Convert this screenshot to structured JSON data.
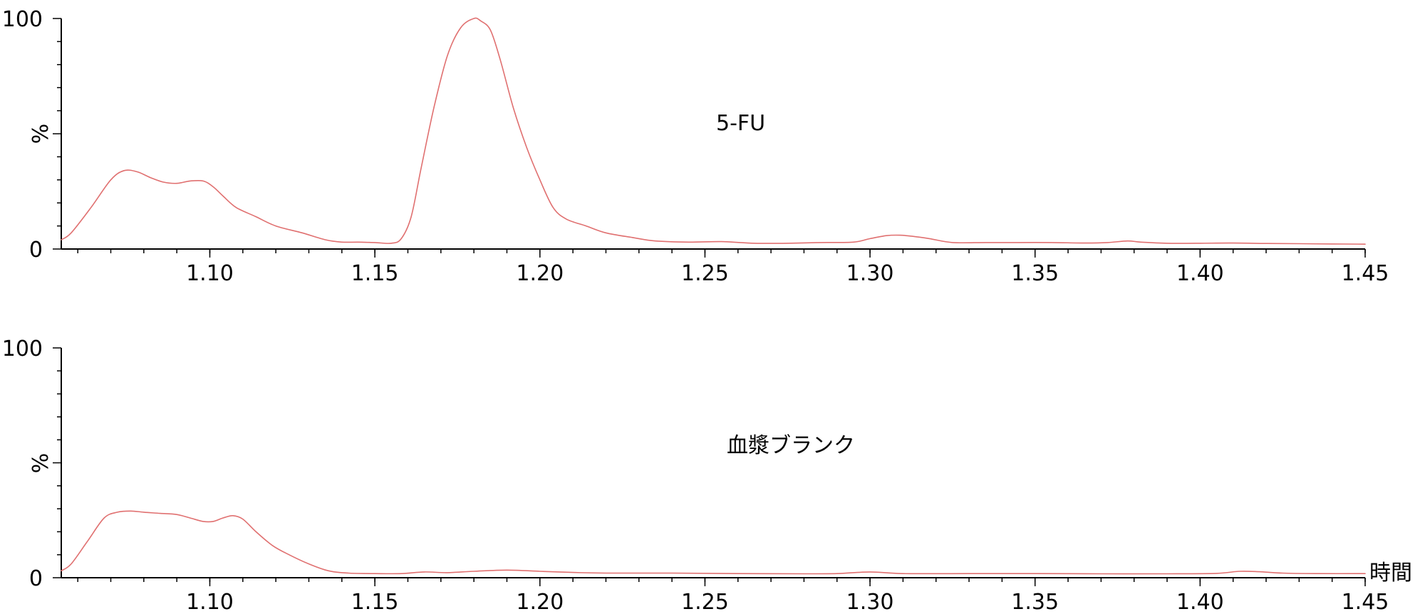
{
  "chart_data": [
    {
      "type": "line",
      "annotation": "5-FU",
      "ylabel": "%",
      "xlabel": "",
      "xlim": [
        1.055,
        1.45
      ],
      "ylim": [
        0,
        100
      ],
      "y_ticks": [
        "0",
        "100"
      ],
      "x_ticks": [
        "1.10",
        "1.15",
        "1.20",
        "1.25",
        "1.30",
        "1.35",
        "1.40",
        "1.45"
      ],
      "grid": false,
      "color": "#e07070",
      "series": [
        {
          "x": [
            1.055,
            1.058,
            1.064,
            1.07,
            1.074,
            1.078,
            1.082,
            1.086,
            1.09,
            1.094,
            1.098,
            1.101,
            1.104,
            1.108,
            1.114,
            1.12,
            1.128,
            1.135,
            1.14,
            1.145,
            1.15,
            1.155,
            1.158,
            1.161,
            1.164,
            1.168,
            1.172,
            1.176,
            1.18,
            1.182,
            1.185,
            1.188,
            1.192,
            1.196,
            1.2,
            1.204,
            1.208,
            1.214,
            1.22,
            1.228,
            1.235,
            1.245,
            1.255,
            1.265,
            1.275,
            1.285,
            1.295,
            1.3,
            1.305,
            1.309,
            1.313,
            1.318,
            1.325,
            1.335,
            1.345,
            1.355,
            1.365,
            1.372,
            1.378,
            1.382,
            1.39,
            1.4,
            1.41,
            1.42,
            1.43,
            1.44,
            1.45
          ],
          "y": [
            4,
            7,
            18,
            30,
            34,
            33.5,
            31,
            29,
            28.5,
            29.5,
            29.5,
            27,
            23,
            18,
            14,
            10,
            7,
            4,
            3,
            3,
            2.8,
            2.5,
            4.5,
            14,
            35,
            62,
            84,
            96,
            100,
            99,
            95,
            82,
            61,
            44,
            30,
            18,
            13,
            10,
            7,
            5,
            3.5,
            3,
            3.2,
            2.5,
            2.5,
            2.8,
            3,
            4.5,
            5.8,
            6,
            5.5,
            4.5,
            2.8,
            2.8,
            2.8,
            2.8,
            2.6,
            2.8,
            3.5,
            3,
            2.5,
            2.5,
            2.6,
            2.4,
            2.3,
            2.2,
            2.1
          ]
        }
      ]
    },
    {
      "type": "line",
      "annotation": "血漿ブランク",
      "ylabel": "%",
      "xlabel": "時間",
      "xlim": [
        1.055,
        1.45
      ],
      "ylim": [
        0,
        100
      ],
      "y_ticks": [
        "0",
        "100"
      ],
      "x_ticks": [
        "1.10",
        "1.15",
        "1.20",
        "1.25",
        "1.30",
        "1.35",
        "1.40",
        "1.45"
      ],
      "grid": false,
      "color": "#e07070",
      "series": [
        {
          "x": [
            1.055,
            1.058,
            1.063,
            1.068,
            1.072,
            1.076,
            1.08,
            1.085,
            1.09,
            1.094,
            1.098,
            1.101,
            1.104,
            1.107,
            1.11,
            1.114,
            1.119,
            1.124,
            1.13,
            1.136,
            1.142,
            1.15,
            1.158,
            1.165,
            1.172,
            1.18,
            1.19,
            1.2,
            1.21,
            1.22,
            1.24,
            1.26,
            1.28,
            1.29,
            1.3,
            1.31,
            1.33,
            1.35,
            1.37,
            1.39,
            1.405,
            1.412,
            1.418,
            1.425,
            1.435,
            1.45
          ],
          "y": [
            3,
            6,
            16,
            26,
            28.5,
            29,
            28.5,
            28,
            27.5,
            26,
            24.5,
            24.5,
            26,
            27,
            25.5,
            20,
            14,
            10,
            6,
            3,
            2,
            1.8,
            1.8,
            2.5,
            2.2,
            2.8,
            3.3,
            2.8,
            2.3,
            2,
            2,
            1.8,
            1.7,
            1.8,
            2.5,
            1.8,
            1.8,
            1.8,
            1.7,
            1.7,
            1.9,
            2.8,
            2.6,
            2,
            1.8,
            1.8
          ]
        }
      ]
    }
  ]
}
